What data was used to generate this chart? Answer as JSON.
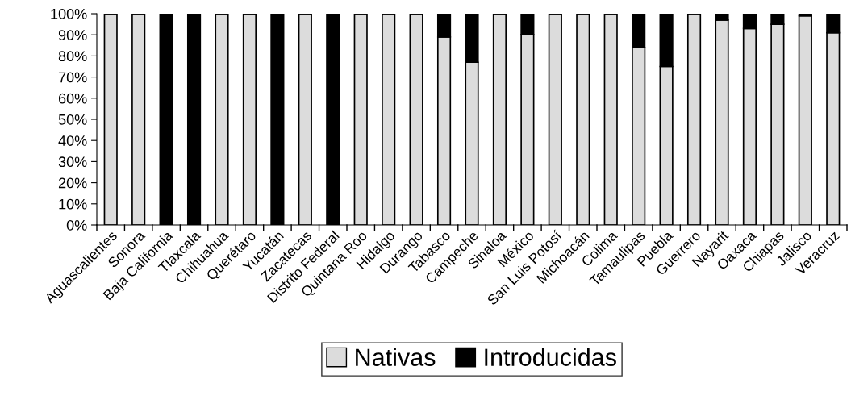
{
  "chart_data": {
    "type": "bar",
    "stacked": true,
    "categories": [
      "Aguascalientes",
      "Sonora",
      "Baja California",
      "Tlaxcala",
      "Chihuahua",
      "Querétaro",
      "Yucatán",
      "Zacatecas",
      "Distrito Federal",
      "Quintana Roo",
      "Hidalgo",
      "Durango",
      "Tabasco",
      "Campeche",
      "Sinaloa",
      "México",
      "San Luis Potosí",
      "Michoacán",
      "Colima",
      "Tamaulipas",
      "Puebla",
      "Guerrero",
      "Nayarit",
      "Oaxaca",
      "Chiapas",
      "Jalisco",
      "Veracruz"
    ],
    "series": [
      {
        "name": "Nativas",
        "color": "#dcdcdc",
        "values": [
          100,
          100,
          0,
          0,
          100,
          100,
          0,
          100,
          0,
          100,
          100,
          100,
          89,
          77,
          100,
          90,
          100,
          100,
          100,
          84,
          75,
          100,
          97,
          93,
          95,
          99,
          91
        ]
      },
      {
        "name": "Introducidas",
        "color": "#000000",
        "values": [
          0,
          0,
          100,
          100,
          0,
          0,
          100,
          0,
          100,
          0,
          0,
          0,
          11,
          23,
          0,
          10,
          0,
          0,
          0,
          16,
          25,
          0,
          3,
          7,
          5,
          1,
          9
        ]
      }
    ],
    "ylim": [
      0,
      100
    ],
    "yticks": [
      {
        "value": 0,
        "label": "0%"
      },
      {
        "value": 10,
        "label": "10%"
      },
      {
        "value": 20,
        "label": "20%"
      },
      {
        "value": 30,
        "label": "30%"
      },
      {
        "value": 40,
        "label": "40%"
      },
      {
        "value": 50,
        "label": "50%"
      },
      {
        "value": 60,
        "label": "60%"
      },
      {
        "value": 70,
        "label": "70%"
      },
      {
        "value": 80,
        "label": "80%"
      },
      {
        "value": 90,
        "label": "90%"
      },
      {
        "value": 100,
        "label": "100%"
      }
    ],
    "grid": false,
    "legend": "bottom"
  }
}
